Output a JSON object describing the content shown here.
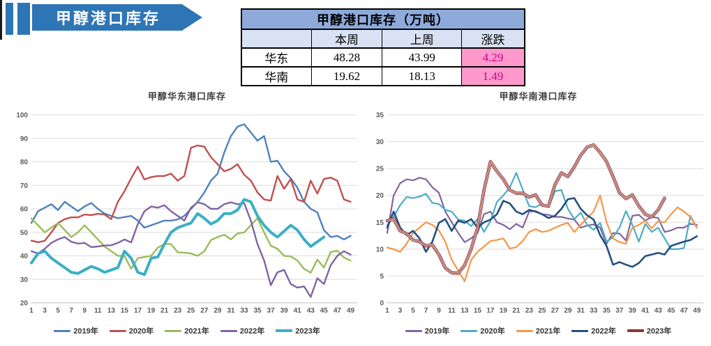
{
  "banner": {
    "title": "甲醇港口库存",
    "color": "#2E75B6"
  },
  "summary_table": {
    "title": "甲醇港口库存（万吨）",
    "columns": [
      "",
      "本周",
      "上周",
      "涨跌"
    ],
    "rows": [
      {
        "name": "华东",
        "this_week": "48.28",
        "last_week": "43.99",
        "change": "4.29"
      },
      {
        "name": "华南",
        "this_week": "19.62",
        "last_week": "18.13",
        "change": "1.49"
      }
    ],
    "colors": {
      "title_bg": "#8EAADB",
      "header_bg": "#D9E2F2",
      "change_bg": "#FF99CC",
      "change_text": "#C9008A"
    }
  },
  "chart_data": [
    {
      "type": "line",
      "title": "甲醇华东港口库存",
      "x_ticks": [
        1,
        3,
        5,
        7,
        9,
        11,
        13,
        15,
        17,
        19,
        21,
        23,
        25,
        27,
        29,
        31,
        33,
        35,
        37,
        39,
        41,
        43,
        45,
        47,
        49
      ],
      "x_max": 50,
      "ylim": [
        20,
        100
      ],
      "y_ticks": [
        20,
        30,
        40,
        50,
        60,
        70,
        80,
        90,
        100
      ],
      "grid": true,
      "legend_position": "bottom",
      "series": [
        {
          "name": "2019年",
          "color": "#4F81BD",
          "width": 2.4,
          "values": [
            54,
            59,
            60.5,
            62,
            59.5,
            63,
            61,
            59,
            61,
            62.5,
            60,
            58,
            57,
            56,
            56.5,
            57,
            55,
            52,
            53,
            54,
            55,
            55,
            55.5,
            57,
            60,
            63,
            67,
            72,
            75,
            84,
            91,
            95,
            96,
            92.5,
            89,
            91,
            80,
            80.5,
            76,
            73,
            69,
            63,
            60,
            58.5,
            51,
            48,
            48.5,
            47,
            48.5
          ]
        },
        {
          "name": "2020年",
          "color": "#C0504D",
          "width": 2.4,
          "values": [
            46.5,
            45.8,
            46.4,
            50,
            54,
            55.6,
            56.4,
            56.4,
            57.6,
            57.3,
            57.9,
            57.6,
            55.6,
            63,
            67.5,
            73,
            78,
            72.5,
            73.5,
            74,
            74,
            75,
            72,
            74,
            86,
            87,
            86.5,
            82,
            79,
            76,
            77,
            79,
            74.5,
            72,
            67,
            64,
            63.5,
            74,
            68.5,
            72.7,
            64,
            63,
            72,
            66.5,
            72.7,
            73.3,
            72,
            64,
            63
          ]
        },
        {
          "name": "2021年",
          "color": "#9BBB59",
          "width": 2.4,
          "values": [
            56,
            53,
            50,
            52,
            54,
            51,
            48,
            50,
            53,
            50,
            47,
            44,
            42,
            40,
            40,
            34.5,
            39,
            39.5,
            40,
            43.5,
            45,
            45,
            41.5,
            41.3,
            41,
            40,
            42,
            46.7,
            48,
            49,
            47,
            49.5,
            50,
            53,
            56,
            50,
            44.3,
            43,
            40,
            39.8,
            38,
            34.5,
            32.8,
            38.4,
            35,
            41.6,
            42.2,
            39.3,
            38
          ]
        },
        {
          "name": "2022年",
          "color": "#8064A2",
          "width": 2.4,
          "values": [
            42,
            41,
            43,
            45.5,
            47,
            48,
            46,
            45.2,
            45.5,
            43.7,
            44,
            44.4,
            44.5,
            45.5,
            47,
            45.7,
            53.5,
            59,
            61,
            60.5,
            61.5,
            59,
            57,
            55,
            60.5,
            62.8,
            62,
            60,
            60,
            62,
            62.8,
            62,
            62.4,
            55,
            45,
            38,
            27.5,
            33,
            34,
            28,
            26.5,
            27,
            22.5,
            30.5,
            28,
            36,
            40,
            42,
            40.5
          ]
        },
        {
          "name": "2023年",
          "color": "#3AAFC6",
          "width": 4,
          "values": [
            37,
            41,
            42,
            39,
            37,
            35,
            33,
            32.5,
            34,
            35.5,
            34.5,
            33,
            34,
            35,
            42,
            39,
            33,
            32,
            39,
            39.5,
            45,
            50,
            52,
            53,
            54,
            58,
            56,
            53.5,
            55,
            58,
            58,
            59.5,
            64,
            63,
            57,
            53,
            50,
            48,
            50.5,
            53,
            51,
            47,
            44,
            46,
            48
          ]
        }
      ]
    },
    {
      "type": "line",
      "title": "甲醇华南港口库存",
      "x_ticks": [
        1,
        3,
        5,
        7,
        9,
        11,
        13,
        15,
        17,
        19,
        21,
        23,
        25,
        27,
        29,
        31,
        33,
        35,
        37,
        39,
        41,
        43,
        45,
        47,
        49
      ],
      "x_max": 50,
      "ylim": [
        0,
        35
      ],
      "y_ticks": [
        0,
        5,
        10,
        15,
        20,
        25,
        30,
        35
      ],
      "grid": true,
      "legend_position": "bottom",
      "series": [
        {
          "name": "2019年",
          "color": "#8064A2",
          "width": 2.2,
          "values": [
            13,
            20,
            22.3,
            23,
            22.8,
            23.3,
            23,
            21.5,
            20.5,
            17,
            15,
            13,
            11.3,
            12,
            13,
            16.5,
            17,
            15,
            14.5,
            13.7,
            14.7,
            14,
            17,
            17.1,
            16.5,
            16.4,
            16,
            16,
            15.7,
            15.5,
            14,
            14.4,
            14.6,
            14,
            11,
            13,
            12.9,
            11.6,
            16.2,
            16.4,
            15.3,
            16,
            15.8,
            13.2,
            13.5,
            14,
            14,
            14.7,
            14.5
          ]
        },
        {
          "name": "2020年",
          "color": "#4BACC6",
          "width": 2.2,
          "values": [
            14.5,
            16,
            18.2,
            19.7,
            19.5,
            19.8,
            20.3,
            18.6,
            18.4,
            17.3,
            17,
            15.5,
            15.3,
            14.3,
            15.6,
            13.2,
            15.2,
            18.8,
            20,
            21.5,
            24.2,
            21.1,
            18,
            17.8,
            18.5,
            17.8,
            20.8,
            21,
            17.5,
            15.6,
            16.8,
            14.5,
            13.6,
            14.9,
            11.4,
            12.2,
            14,
            17.1,
            14.5,
            11.4,
            14.7,
            13.2,
            14,
            12,
            10,
            10,
            10.2,
            16.2,
            14
          ]
        },
        {
          "name": "2021年",
          "color": "#F79646",
          "width": 2.2,
          "values": [
            10.3,
            10,
            9.5,
            11,
            13,
            14,
            15,
            14.5,
            13.5,
            11.4,
            8,
            6,
            4,
            8,
            9.5,
            10.5,
            11.5,
            11.7,
            12,
            10.1,
            10.4,
            11.5,
            13.2,
            13.7,
            13.2,
            13.4,
            14,
            14.5,
            14.9,
            13.2,
            14.5,
            15.8,
            17,
            20,
            15,
            12,
            11.3,
            11,
            14,
            14.5,
            15.3,
            13.9,
            15.2,
            15,
            16.5,
            17.8,
            17,
            16,
            14
          ]
        },
        {
          "name": "2022年",
          "color": "#235080",
          "width": 2.6,
          "values": [
            14,
            17,
            14,
            12.6,
            13.4,
            12,
            9.5,
            11.4,
            14.9,
            15.6,
            13.4,
            15.3,
            14.9,
            15.6,
            14,
            15,
            15.5,
            16.5,
            19,
            18.5,
            17,
            16.5,
            17.3,
            17,
            16.5,
            15.8,
            16.2,
            17.5,
            19.3,
            19.5,
            17.5,
            16.3,
            15.5,
            12.6,
            10.6,
            7.1,
            7.6,
            7.1,
            6.7,
            7.4,
            8.7,
            9,
            9.3,
            9,
            10.6,
            11,
            11.4,
            11.7,
            12.4
          ]
        },
        {
          "name": "2023年",
          "color": "#8F3330",
          "width": 4.6,
          "outline": "#FFFFFF",
          "values": [
            15.3,
            15.6,
            13.4,
            12.9,
            11.7,
            11.4,
            10.6,
            10.8,
            9,
            6.5,
            5.6,
            5.5,
            7,
            10,
            14,
            21,
            26.3,
            24.5,
            23,
            21,
            20.4,
            20.4,
            19.7,
            20.1,
            18.2,
            18,
            22,
            24.2,
            23.5,
            25.3,
            27.5,
            29,
            29.4,
            28,
            26.3,
            23.5,
            20.5,
            19.4,
            20.1,
            18,
            16.5,
            16,
            17.3,
            19.5
          ]
        }
      ]
    }
  ]
}
